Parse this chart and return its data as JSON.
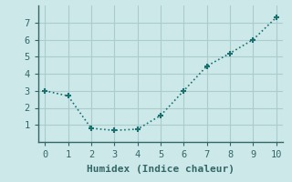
{
  "x": [
    0,
    1,
    2,
    3,
    4,
    5,
    6,
    7,
    8,
    9,
    10
  ],
  "y": [
    3.0,
    2.7,
    0.8,
    0.68,
    0.75,
    1.55,
    3.0,
    4.45,
    5.2,
    6.0,
    7.3
  ],
  "xlabel": "Humidex (Indice chaleur)",
  "ylim": [
    0,
    8
  ],
  "xlim": [
    -0.3,
    10.3
  ],
  "yticks": [
    1,
    2,
    3,
    4,
    5,
    6,
    7
  ],
  "xticks": [
    0,
    1,
    2,
    3,
    4,
    5,
    6,
    7,
    8,
    9,
    10
  ],
  "line_color": "#1a7070",
  "marker": "+",
  "marker_size": 5,
  "bg_color": "#cce8e8",
  "grid_color": "#aacccc",
  "xlabel_fontsize": 8,
  "tick_fontsize": 7.5,
  "linewidth": 1.2
}
